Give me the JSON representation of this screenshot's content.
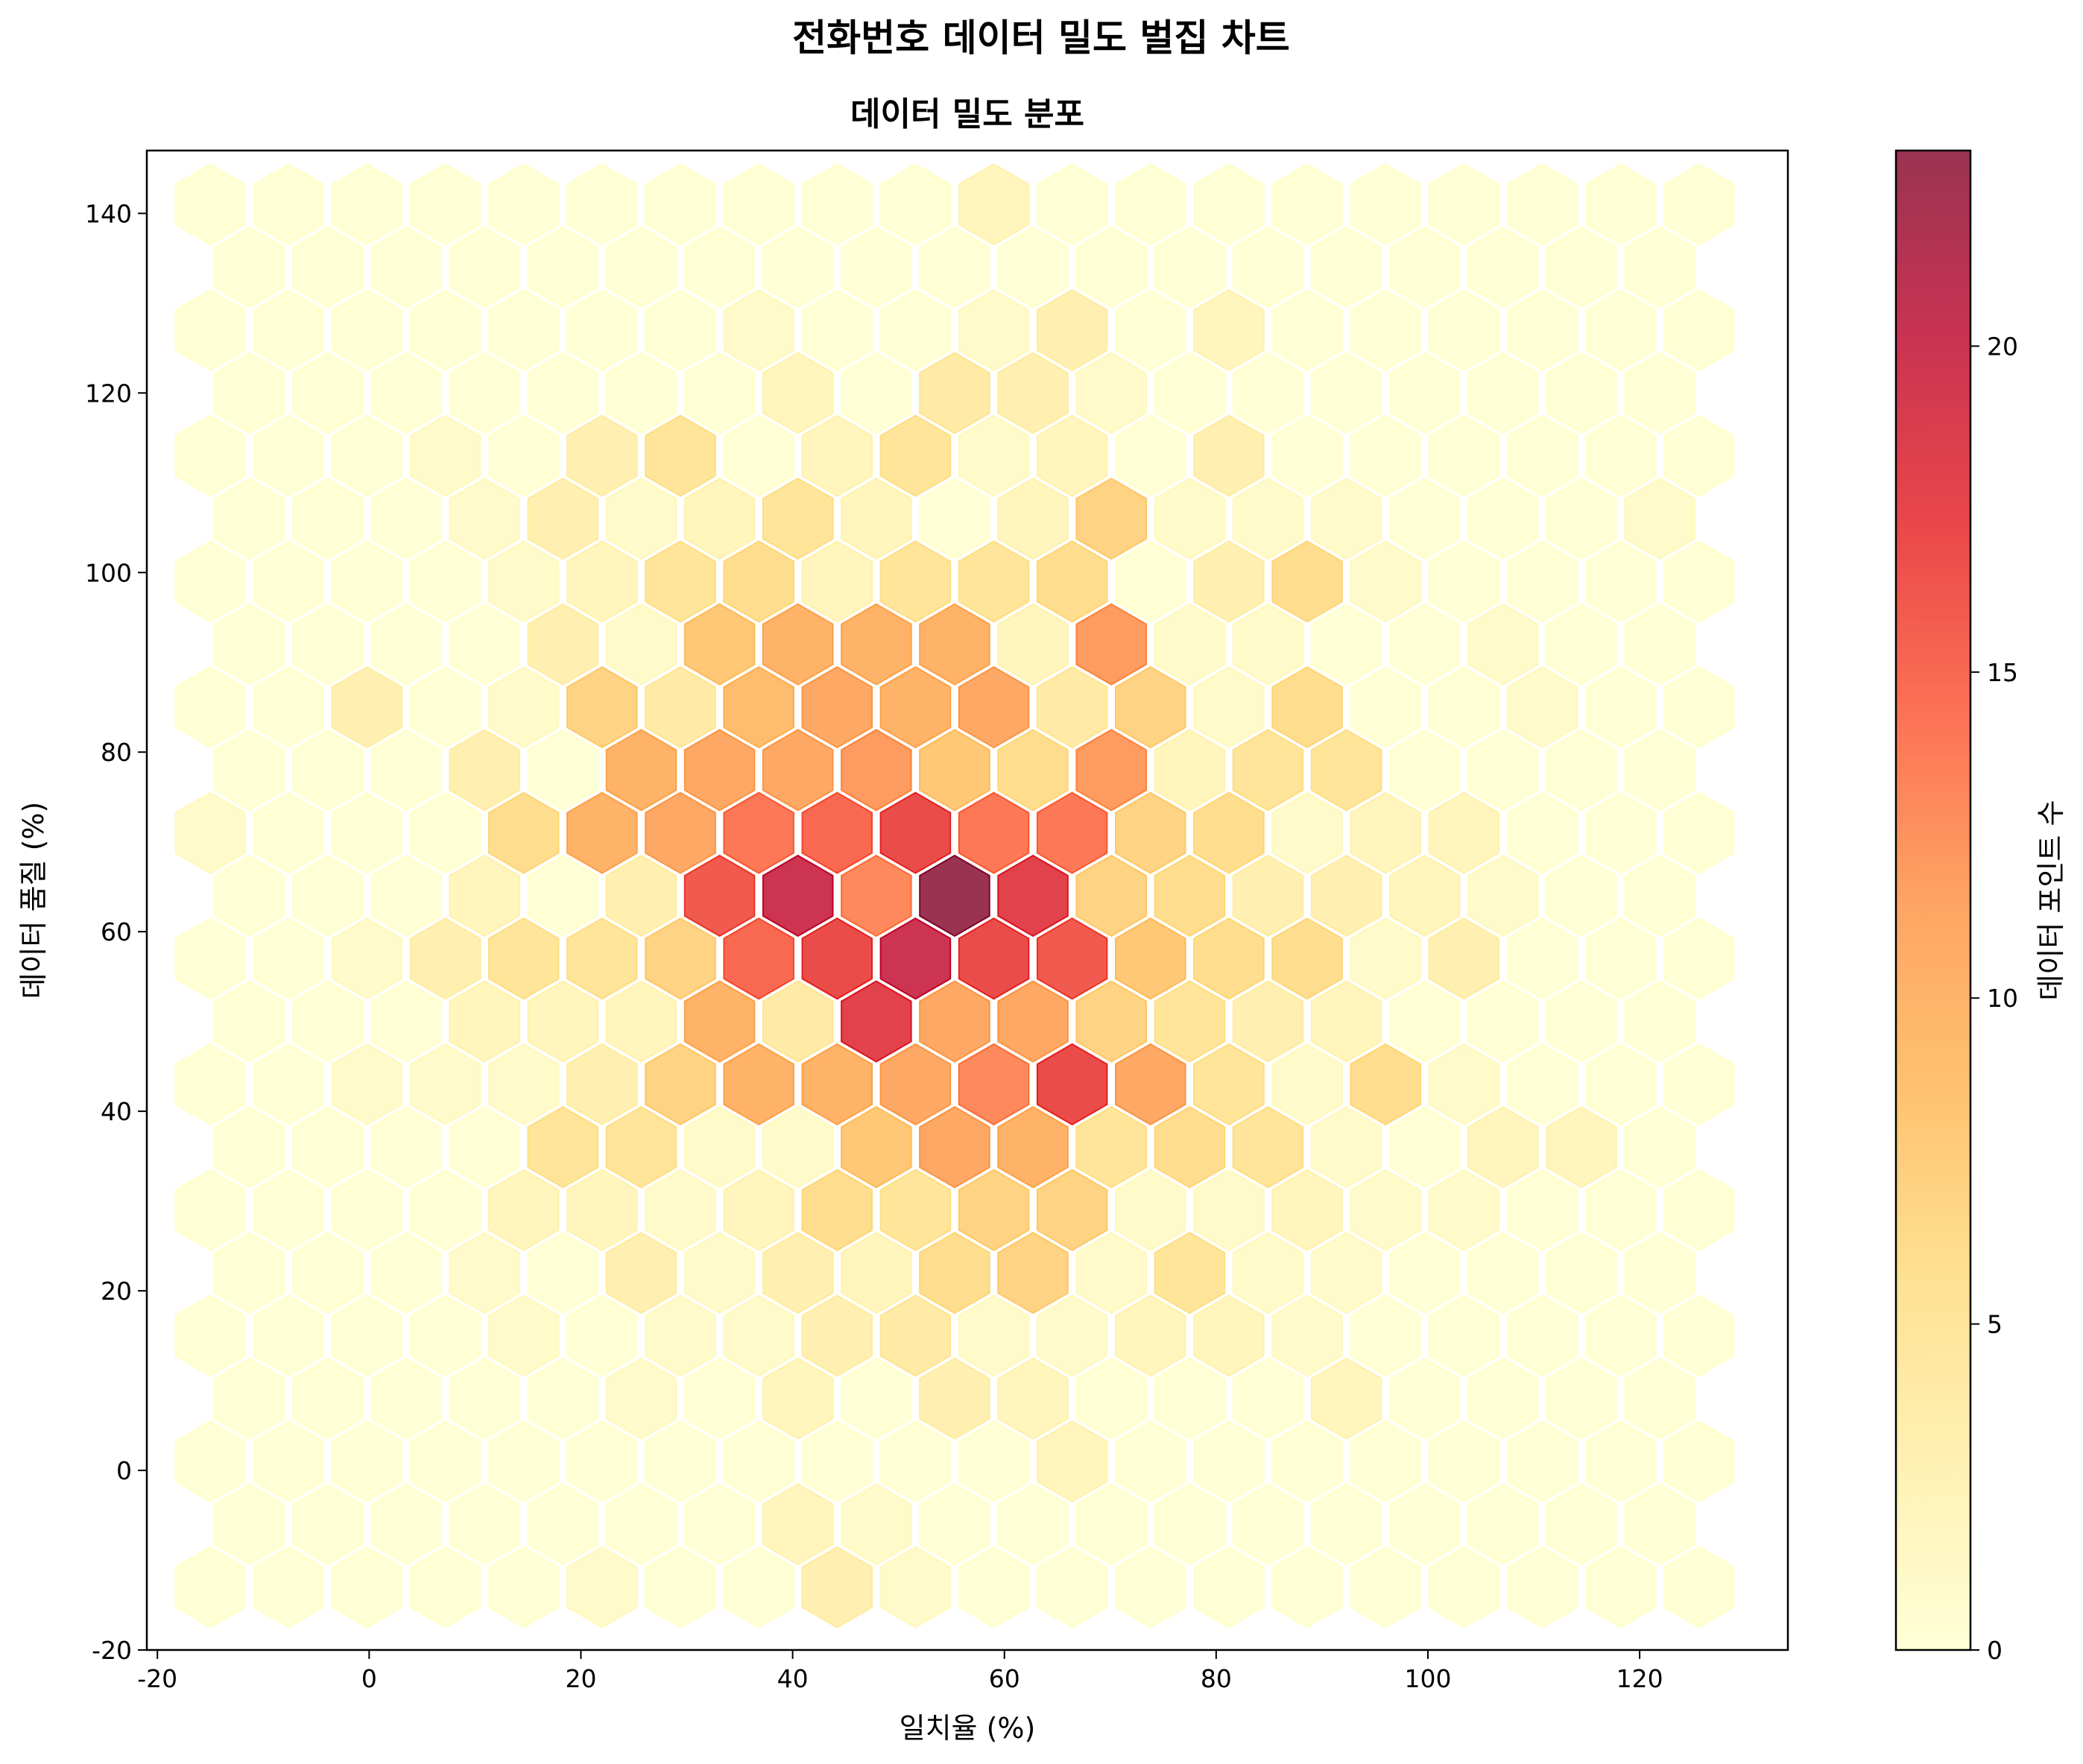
{
  "chart_data": {
    "type": "hexbin",
    "suptitle": "전화번호 데이터 밀도 벌집 차트",
    "title": "데이터 밀도 분포",
    "xlabel": "일치율 (%)",
    "ylabel": "데이터 품질 (%)",
    "colorbar_label": "데이터 포인트 수",
    "xlim": [
      -21,
      134
    ],
    "ylim": [
      -20,
      147
    ],
    "xticks": [
      "-20",
      "0",
      "20",
      "40",
      "60",
      "80",
      "100",
      "120"
    ],
    "yticks": [
      "-20",
      "0",
      "20",
      "40",
      "60",
      "80",
      "100",
      "120",
      "140"
    ],
    "colorbar_ticks": [
      "0",
      "5",
      "10",
      "15",
      "20"
    ],
    "count_range": [
      0,
      23
    ],
    "colormap": "YlOrRd",
    "colormap_stops": [
      "#ffffcc",
      "#ffeda0",
      "#fed976",
      "#feb24c",
      "#fd8d3c",
      "#fc4e2a",
      "#e31a1c",
      "#bd0026",
      "#800026"
    ],
    "grid": false,
    "hex_grid": {
      "x_centers_even_rows": [
        -15,
        -7.6,
        -0.2,
        7.2,
        14.6,
        22,
        29.4,
        36.8,
        44.2,
        51.6,
        59,
        66.4,
        73.8,
        81.2,
        88.6,
        96,
        103.4,
        110.8,
        118.2,
        125.6
      ],
      "x_centers_odd_rows": [
        -11.3,
        -3.9,
        3.5,
        10.9,
        18.3,
        25.7,
        33.1,
        40.5,
        47.9,
        55.3,
        62.7,
        70.1,
        77.5,
        84.9,
        92.3,
        99.7,
        107.1,
        114.5,
        121.9
      ],
      "y_centers": [
        -13,
        -6,
        1,
        8,
        15,
        22,
        29,
        36,
        43,
        50,
        57,
        64,
        71,
        78,
        85,
        92,
        99,
        106,
        113,
        120,
        127,
        134,
        141
      ],
      "counts_by_row": [
        [
          0,
          0,
          0,
          0,
          0,
          1,
          0,
          0,
          3,
          1,
          0,
          0,
          0,
          0,
          0,
          0,
          0,
          0,
          0,
          0
        ],
        [
          0,
          0,
          0,
          0,
          0,
          0,
          0,
          2,
          1,
          0,
          0,
          0,
          0,
          0,
          0,
          0,
          0,
          0,
          0
        ],
        [
          0,
          0,
          0,
          0,
          0,
          0,
          0,
          0,
          0,
          0,
          0,
          2,
          0,
          0,
          0,
          0,
          0,
          0,
          0,
          0
        ],
        [
          0,
          0,
          0,
          0,
          0,
          1,
          0,
          2,
          0,
          3,
          2,
          0,
          0,
          0,
          2,
          0,
          0,
          0,
          0
        ],
        [
          0,
          0,
          0,
          0,
          1,
          0,
          1,
          1,
          3,
          4,
          1,
          1,
          2,
          2,
          1,
          0,
          0,
          0,
          0,
          0
        ],
        [
          0,
          0,
          0,
          1,
          0,
          3,
          1,
          3,
          2,
          6,
          7,
          1,
          5,
          1,
          1,
          0,
          0,
          0,
          0
        ],
        [
          0,
          0,
          0,
          0,
          2,
          2,
          1,
          2,
          6,
          5,
          7,
          7,
          1,
          1,
          2,
          1,
          1,
          0,
          0,
          0
        ],
        [
          0,
          0,
          0,
          0,
          5,
          5,
          1,
          1,
          8,
          11,
          10,
          5,
          6,
          5,
          1,
          0,
          2,
          2,
          0
        ],
        [
          0,
          0,
          1,
          1,
          1,
          3,
          7,
          10,
          10,
          11,
          13,
          17,
          11,
          5,
          1,
          6,
          1,
          0,
          0,
          0
        ],
        [
          0,
          0,
          0,
          2,
          2,
          2,
          10,
          4,
          18,
          11,
          11,
          7,
          5,
          3,
          2,
          0,
          0,
          0,
          0
        ],
        [
          0,
          0,
          1,
          3,
          5,
          5,
          7,
          15,
          17,
          20,
          17,
          16,
          8,
          6,
          6,
          1,
          3,
          0,
          0,
          0
        ],
        [
          0,
          0,
          0,
          2,
          0,
          3,
          16,
          20,
          13,
          23,
          18,
          7,
          6,
          3,
          3,
          2,
          1,
          0,
          0
        ],
        [
          1,
          0,
          0,
          0,
          6,
          10,
          11,
          14,
          15,
          17,
          14,
          14,
          7,
          6,
          1,
          2,
          2,
          0,
          0,
          0
        ],
        [
          0,
          0,
          0,
          3,
          0,
          10,
          11,
          11,
          12,
          8,
          6,
          12,
          2,
          5,
          5,
          0,
          0,
          0,
          0
        ],
        [
          0,
          0,
          3,
          0,
          1,
          7,
          4,
          9,
          11,
          10,
          11,
          4,
          7,
          1,
          6,
          0,
          0,
          1,
          0,
          0
        ],
        [
          0,
          0,
          0,
          0,
          3,
          1,
          8,
          10,
          10,
          10,
          2,
          12,
          1,
          1,
          0,
          0,
          1,
          0,
          0
        ],
        [
          0,
          0,
          0,
          0,
          1,
          2,
          5,
          6,
          2,
          5,
          5,
          6,
          0,
          3,
          6,
          1,
          0,
          0,
          0,
          0
        ],
        [
          0,
          0,
          0,
          1,
          3,
          1,
          2,
          5,
          2,
          0,
          2,
          7,
          1,
          1,
          1,
          0,
          0,
          0,
          1
        ],
        [
          0,
          0,
          0,
          1,
          0,
          3,
          5,
          0,
          2,
          5,
          1,
          2,
          0,
          3,
          0,
          0,
          0,
          0,
          0,
          0
        ],
        [
          0,
          0,
          0,
          0,
          0,
          0,
          0,
          2,
          0,
          4,
          3,
          1,
          0,
          0,
          0,
          0,
          0,
          0,
          0
        ],
        [
          0,
          0,
          0,
          0,
          0,
          0,
          0,
          1,
          0,
          0,
          1,
          3,
          0,
          2,
          0,
          0,
          0,
          0,
          0,
          0
        ],
        [
          0,
          0,
          0,
          0,
          0,
          0,
          0,
          0,
          0,
          0,
          0,
          0,
          0,
          0,
          0,
          0,
          0,
          0,
          0
        ],
        [
          0,
          0,
          0,
          0,
          0,
          0,
          0,
          0,
          0,
          0,
          2,
          0,
          0,
          0,
          0,
          0,
          0,
          0,
          0,
          0
        ]
      ]
    }
  }
}
